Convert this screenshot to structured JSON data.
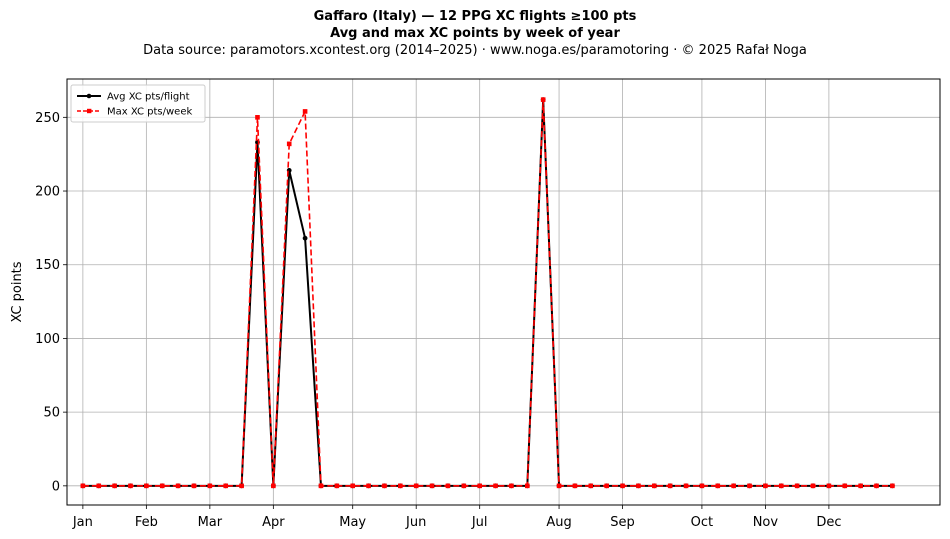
{
  "header": {
    "title_line1": "Gaffaro (Italy)  —  12 PPG XC flights ≥100 pts",
    "title_line2": "Avg and max XC points by week of year",
    "title_line3": "Data source: paramotors.xcontest.org (2014–2025)  ·  www.noga.es/paramotoring  ·  © 2025 Rafał Noga"
  },
  "chart_data": {
    "type": "line",
    "title": "Gaffaro (Italy)  —  12 PPG XC flights ≥100 pts",
    "subtitle": "Avg and max XC points by week of year",
    "xlabel": "",
    "ylabel": "XC points",
    "xlim": [
      -1,
      54
    ],
    "ylim": [
      -13,
      276
    ],
    "yticks": [
      0,
      50,
      100,
      150,
      200,
      250
    ],
    "xticks": [
      {
        "week": 0,
        "label": "Jan"
      },
      {
        "week": 4,
        "label": "Feb"
      },
      {
        "week": 8,
        "label": "Mar"
      },
      {
        "week": 12,
        "label": "Apr"
      },
      {
        "week": 17,
        "label": "May"
      },
      {
        "week": 21,
        "label": "Jun"
      },
      {
        "week": 25,
        "label": "Jul"
      },
      {
        "week": 30,
        "label": "Aug"
      },
      {
        "week": 34,
        "label": "Sep"
      },
      {
        "week": 39,
        "label": "Oct"
      },
      {
        "week": 43,
        "label": "Nov"
      },
      {
        "week": 47,
        "label": "Dec"
      }
    ],
    "grid": true,
    "legend_position": "top-left",
    "x": [
      0,
      1,
      2,
      3,
      4,
      5,
      6,
      7,
      8,
      9,
      10,
      11,
      12,
      13,
      14,
      15,
      16,
      17,
      18,
      19,
      20,
      21,
      22,
      23,
      24,
      25,
      26,
      27,
      28,
      29,
      30,
      31,
      32,
      33,
      34,
      35,
      36,
      37,
      38,
      39,
      40,
      41,
      42,
      43,
      44,
      45,
      46,
      47,
      48,
      49,
      50,
      51
    ],
    "series": [
      {
        "name": "Avg XC pts/flight",
        "color": "#000000",
        "style": "solid-circle",
        "values": [
          0,
          0,
          0,
          0,
          0,
          0,
          0,
          0,
          0,
          0,
          0,
          233,
          0,
          214,
          168,
          0,
          0,
          0,
          0,
          0,
          0,
          0,
          0,
          0,
          0,
          0,
          0,
          0,
          0,
          262,
          0,
          0,
          0,
          0,
          0,
          0,
          0,
          0,
          0,
          0,
          0,
          0,
          0,
          0,
          0,
          0,
          0,
          0,
          0,
          0,
          0,
          0
        ]
      },
      {
        "name": "Max XC pts/week",
        "color": "#ff0000",
        "style": "dashed-square",
        "values": [
          0,
          0,
          0,
          0,
          0,
          0,
          0,
          0,
          0,
          0,
          0,
          250,
          0,
          232,
          254,
          0,
          0,
          0,
          0,
          0,
          0,
          0,
          0,
          0,
          0,
          0,
          0,
          0,
          0,
          262,
          0,
          0,
          0,
          0,
          0,
          0,
          0,
          0,
          0,
          0,
          0,
          0,
          0,
          0,
          0,
          0,
          0,
          0,
          0,
          0,
          0,
          0
        ]
      }
    ]
  }
}
